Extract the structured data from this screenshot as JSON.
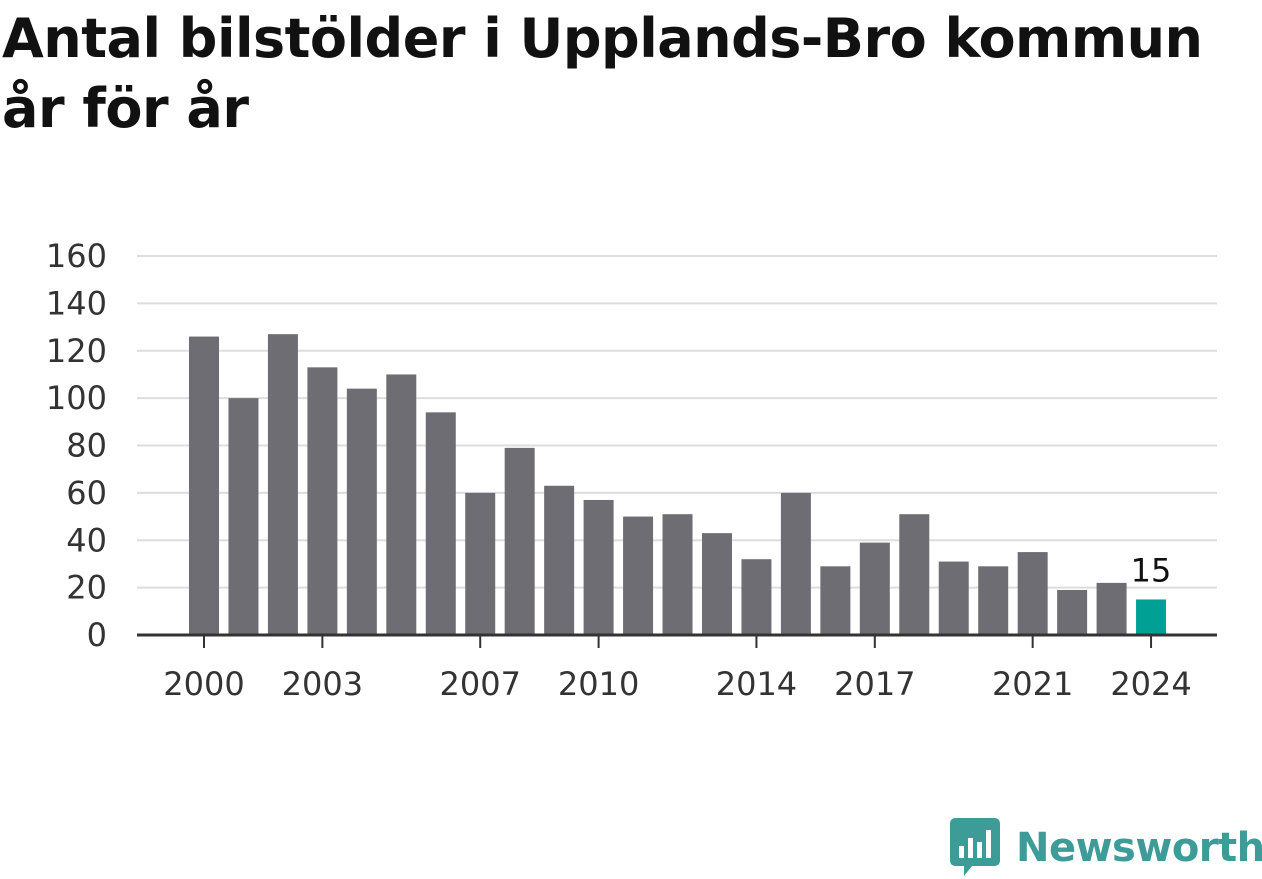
{
  "title": "Antal bilstölder i Upplands-Bro kommun år för år",
  "brand": {
    "name": "Newsworthy",
    "icon": "bar-chart-speech-bubble-icon"
  },
  "colors": {
    "bar": "#6e6d73",
    "highlight": "#00a094",
    "grid": "#dddddd",
    "axis": "#333333",
    "brand": "#3d9c98"
  },
  "chart_data": {
    "type": "bar",
    "title": "Antal bilstölder i Upplands-Bro kommun år för år",
    "xlabel": "",
    "ylabel": "",
    "categories": [
      "2000",
      "2001",
      "2002",
      "2003",
      "2004",
      "2005",
      "2006",
      "2007",
      "2008",
      "2009",
      "2010",
      "2011",
      "2012",
      "2013",
      "2014",
      "2015",
      "2016",
      "2017",
      "2018",
      "2019",
      "2020",
      "2021",
      "2022",
      "2023",
      "2024"
    ],
    "values": [
      126,
      100,
      127,
      113,
      104,
      110,
      94,
      60,
      79,
      63,
      57,
      50,
      51,
      43,
      32,
      60,
      29,
      39,
      51,
      31,
      29,
      35,
      19,
      22,
      15
    ],
    "xticks": [
      "2000",
      "2003",
      "2007",
      "2010",
      "2014",
      "2017",
      "2021",
      "2024"
    ],
    "yticks": [
      0,
      20,
      40,
      60,
      80,
      100,
      120,
      140,
      160
    ],
    "ylim": [
      0,
      160
    ],
    "grid": true,
    "highlight": {
      "category": "2024",
      "label": "15"
    }
  }
}
